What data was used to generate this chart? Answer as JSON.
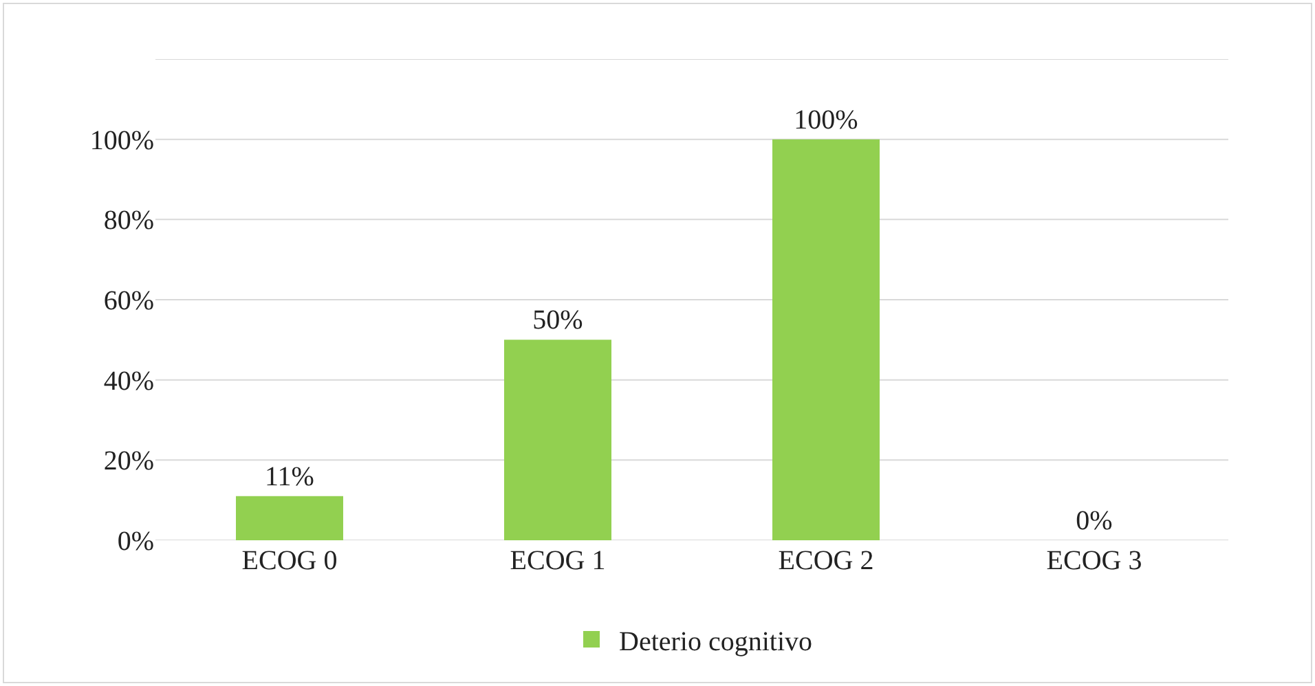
{
  "chart_data": {
    "type": "bar",
    "categories": [
      "ECOG 0",
      "ECOG 1",
      "ECOG 2",
      "ECOG 3"
    ],
    "series": [
      {
        "name": "Deterio cognitivo",
        "color": "#92d050",
        "values": [
          11,
          50,
          100,
          0
        ],
        "value_labels": [
          "11%",
          "50%",
          "100%",
          "0%"
        ]
      }
    ],
    "ylim": [
      0,
      120
    ],
    "yticks": [
      {
        "value": 0,
        "label": "0%"
      },
      {
        "value": 20,
        "label": "20%"
      },
      {
        "value": 40,
        "label": "40%"
      },
      {
        "value": 60,
        "label": "60%"
      },
      {
        "value": 80,
        "label": "80%"
      },
      {
        "value": 100,
        "label": "100%"
      },
      {
        "value": 120,
        "label": null
      }
    ],
    "grid": "y",
    "legend": "bottom"
  }
}
